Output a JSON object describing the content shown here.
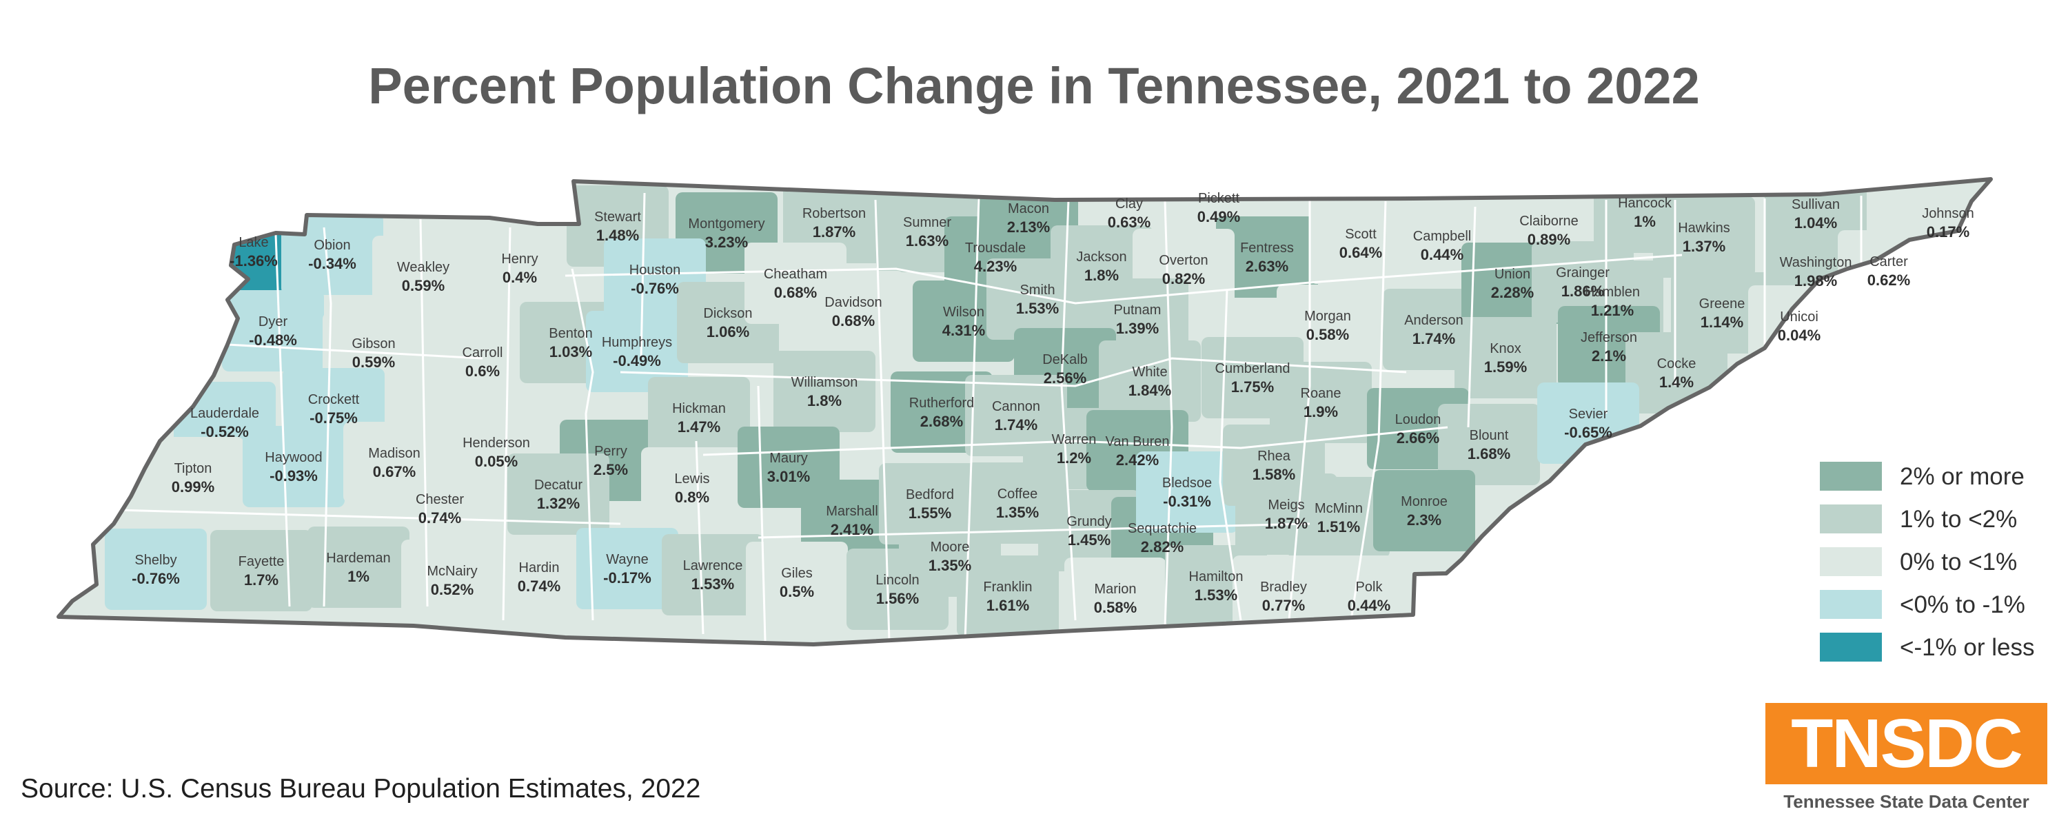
{
  "title": "Percent Population Change in Tennessee, 2021 to 2022",
  "source": "Source:  U.S. Census Bureau Population Estimates, 2022",
  "logo": {
    "text": "TNSDC",
    "subtitle": "Tennessee State Data Center"
  },
  "legend": [
    {
      "label": "2% or more",
      "color": "#8cb4a6"
    },
    {
      "label": "1% to <2%",
      "color": "#bdd3cb"
    },
    {
      "label": "0% to <1%",
      "color": "#dde8e3"
    },
    {
      "label": "<0% to -1%",
      "color": "#b9e0e2"
    },
    {
      "label": "<-1% or less",
      "color": "#2a9aa9"
    }
  ],
  "colors": {
    "border": "#666666",
    "county_line": "#ffffff",
    "road": "#9aa3a6"
  },
  "counties": [
    {
      "name": "Lake",
      "value": "-1.36%",
      "class": 4
    },
    {
      "name": "Obion",
      "value": "-0.34%",
      "class": 3
    },
    {
      "name": "Weakley",
      "value": "0.59%",
      "class": 2
    },
    {
      "name": "Henry",
      "value": "0.4%",
      "class": 2
    },
    {
      "name": "Stewart",
      "value": "1.48%",
      "class": 1
    },
    {
      "name": "Montgomery",
      "value": "3.23%",
      "class": 0
    },
    {
      "name": "Robertson",
      "value": "1.87%",
      "class": 1
    },
    {
      "name": "Sumner",
      "value": "1.63%",
      "class": 1
    },
    {
      "name": "Macon",
      "value": "2.13%",
      "class": 0
    },
    {
      "name": "Clay",
      "value": "0.63%",
      "class": 2
    },
    {
      "name": "Pickett",
      "value": "0.49%",
      "class": 2
    },
    {
      "name": "Fentress",
      "value": "2.63%",
      "class": 0
    },
    {
      "name": "Scott",
      "value": "0.64%",
      "class": 2
    },
    {
      "name": "Campbell",
      "value": "0.44%",
      "class": 2
    },
    {
      "name": "Claiborne",
      "value": "0.89%",
      "class": 2
    },
    {
      "name": "Hancock",
      "value": "1%",
      "class": 1
    },
    {
      "name": "Hawkins",
      "value": "1.37%",
      "class": 1
    },
    {
      "name": "Sullivan",
      "value": "1.04%",
      "class": 1
    },
    {
      "name": "Johnson",
      "value": "0.17%",
      "class": 2
    },
    {
      "name": "Dyer",
      "value": "-0.48%",
      "class": 3
    },
    {
      "name": "Gibson",
      "value": "0.59%",
      "class": 2
    },
    {
      "name": "Carroll",
      "value": "0.6%",
      "class": 2
    },
    {
      "name": "Benton",
      "value": "1.03%",
      "class": 1
    },
    {
      "name": "Houston",
      "value": "-0.76%",
      "class": 3
    },
    {
      "name": "Humphreys",
      "value": "-0.49%",
      "class": 3
    },
    {
      "name": "Dickson",
      "value": "1.06%",
      "class": 1
    },
    {
      "name": "Cheatham",
      "value": "0.68%",
      "class": 2
    },
    {
      "name": "Davidson",
      "value": "0.68%",
      "class": 2
    },
    {
      "name": "Trousdale",
      "value": "4.23%",
      "class": 0
    },
    {
      "name": "Wilson",
      "value": "4.31%",
      "class": 0
    },
    {
      "name": "Smith",
      "value": "1.53%",
      "class": 1
    },
    {
      "name": "Jackson",
      "value": "1.8%",
      "class": 1
    },
    {
      "name": "Overton",
      "value": "0.82%",
      "class": 2
    },
    {
      "name": "Putnam",
      "value": "1.39%",
      "class": 1
    },
    {
      "name": "Morgan",
      "value": "0.58%",
      "class": 2
    },
    {
      "name": "Anderson",
      "value": "1.74%",
      "class": 1
    },
    {
      "name": "Union",
      "value": "2.28%",
      "class": 0
    },
    {
      "name": "Grainger",
      "value": "1.86%",
      "class": 1
    },
    {
      "name": "Hamblen",
      "value": "1.21%",
      "class": 1
    },
    {
      "name": "Greene",
      "value": "1.14%",
      "class": 1
    },
    {
      "name": "Washington",
      "value": "1.98%",
      "class": 1
    },
    {
      "name": "Carter",
      "value": "0.62%",
      "class": 2
    },
    {
      "name": "Unicoi",
      "value": "0.04%",
      "class": 2
    },
    {
      "name": "Lauderdale",
      "value": "-0.52%",
      "class": 3
    },
    {
      "name": "Crockett",
      "value": "-0.75%",
      "class": 3
    },
    {
      "name": "Williamson",
      "value": "1.8%",
      "class": 1
    },
    {
      "name": "Rutherford",
      "value": "2.68%",
      "class": 0
    },
    {
      "name": "DeKalb",
      "value": "2.56%",
      "class": 0
    },
    {
      "name": "White",
      "value": "1.84%",
      "class": 1
    },
    {
      "name": "Cumberland",
      "value": "1.75%",
      "class": 1
    },
    {
      "name": "Knox",
      "value": "1.59%",
      "class": 1
    },
    {
      "name": "Jefferson",
      "value": "2.1%",
      "class": 0
    },
    {
      "name": "Cocke",
      "value": "1.4%",
      "class": 1
    },
    {
      "name": "Tipton",
      "value": "0.99%",
      "class": 2
    },
    {
      "name": "Haywood",
      "value": "-0.93%",
      "class": 3
    },
    {
      "name": "Madison",
      "value": "0.67%",
      "class": 2
    },
    {
      "name": "Henderson",
      "value": "0.05%",
      "class": 2
    },
    {
      "name": "Perry",
      "value": "2.5%",
      "class": 0
    },
    {
      "name": "Hickman",
      "value": "1.47%",
      "class": 1
    },
    {
      "name": "Cannon",
      "value": "1.74%",
      "class": 1
    },
    {
      "name": "Warren",
      "value": "1.2%",
      "class": 1
    },
    {
      "name": "Van Buren",
      "value": "2.42%",
      "class": 0
    },
    {
      "name": "Roane",
      "value": "1.9%",
      "class": 1
    },
    {
      "name": "Loudon",
      "value": "2.66%",
      "class": 0
    },
    {
      "name": "Blount",
      "value": "1.68%",
      "class": 1
    },
    {
      "name": "Sevier",
      "value": "-0.65%",
      "class": 3
    },
    {
      "name": "Chester",
      "value": "0.74%",
      "class": 2
    },
    {
      "name": "Decatur",
      "value": "1.32%",
      "class": 1
    },
    {
      "name": "Lewis",
      "value": "0.8%",
      "class": 2
    },
    {
      "name": "Maury",
      "value": "3.01%",
      "class": 0
    },
    {
      "name": "Marshall",
      "value": "2.41%",
      "class": 0
    },
    {
      "name": "Bedford",
      "value": "1.55%",
      "class": 1
    },
    {
      "name": "Coffee",
      "value": "1.35%",
      "class": 1
    },
    {
      "name": "Grundy",
      "value": "1.45%",
      "class": 1
    },
    {
      "name": "Sequatchie",
      "value": "2.82%",
      "class": 0
    },
    {
      "name": "Bledsoe",
      "value": "-0.31%",
      "class": 3
    },
    {
      "name": "Rhea",
      "value": "1.58%",
      "class": 1
    },
    {
      "name": "Meigs",
      "value": "1.87%",
      "class": 1
    },
    {
      "name": "McMinn",
      "value": "1.51%",
      "class": 1
    },
    {
      "name": "Monroe",
      "value": "2.3%",
      "class": 0
    },
    {
      "name": "Shelby",
      "value": "-0.76%",
      "class": 3
    },
    {
      "name": "Fayette",
      "value": "1.7%",
      "class": 1
    },
    {
      "name": "Hardeman",
      "value": "1%",
      "class": 1
    },
    {
      "name": "McNairy",
      "value": "0.52%",
      "class": 2
    },
    {
      "name": "Hardin",
      "value": "0.74%",
      "class": 2
    },
    {
      "name": "Wayne",
      "value": "-0.17%",
      "class": 3
    },
    {
      "name": "Lawrence",
      "value": "1.53%",
      "class": 1
    },
    {
      "name": "Giles",
      "value": "0.5%",
      "class": 2
    },
    {
      "name": "Lincoln",
      "value": "1.56%",
      "class": 1
    },
    {
      "name": "Moore",
      "value": "1.35%",
      "class": 1
    },
    {
      "name": "Franklin",
      "value": "1.61%",
      "class": 1
    },
    {
      "name": "Marion",
      "value": "0.58%",
      "class": 2
    },
    {
      "name": "Hamilton",
      "value": "1.53%",
      "class": 1
    },
    {
      "name": "Bradley",
      "value": "0.77%",
      "class": 2
    },
    {
      "name": "Polk",
      "value": "0.44%",
      "class": 2
    }
  ]
}
